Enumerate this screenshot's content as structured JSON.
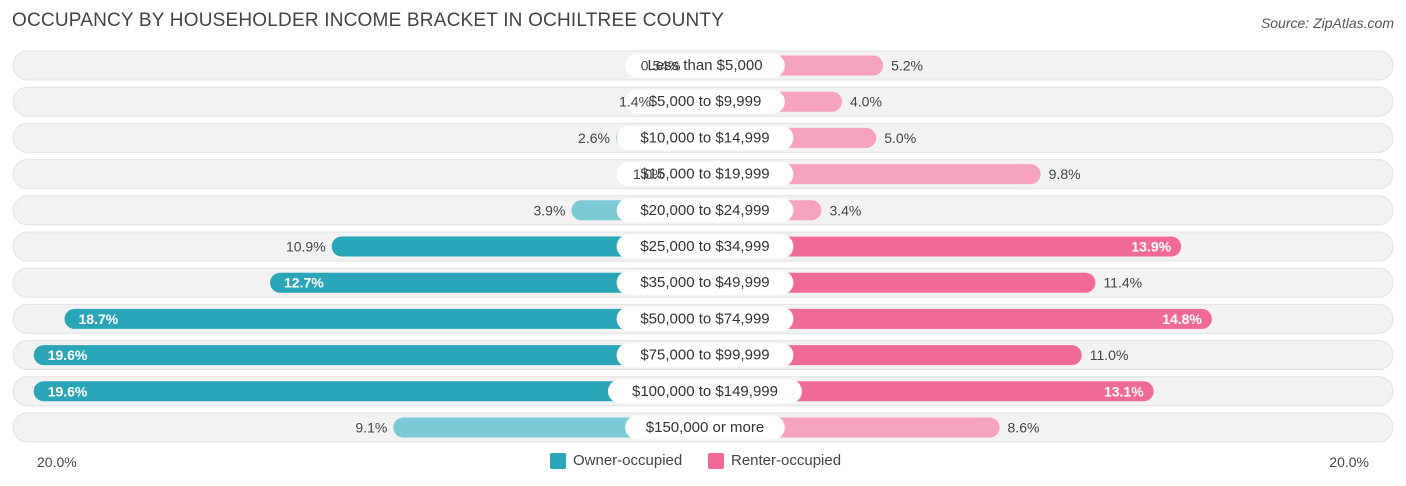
{
  "header": {
    "title": "OCCUPANCY BY HOUSEHOLDER INCOME BRACKET IN OCHILTREE COUNTY",
    "source": "Source: ZipAtlas.com"
  },
  "axis": {
    "left_label": "20.0%",
    "right_label": "20.0%"
  },
  "legend": {
    "owner_label": "Owner-occupied",
    "renter_label": "Renter-occupied"
  },
  "colors": {
    "owner_dark": "#2ba5b8",
    "owner_light": "#7ccad6",
    "renter_dark": "#f06a96",
    "renter_light": "#f5a3be",
    "row_bg": "#f1f1f1"
  },
  "chart_data": {
    "type": "bar",
    "orientation": "diverging-horizontal",
    "title": "OCCUPANCY BY HOUSEHOLDER INCOME BRACKET IN OCHILTREE COUNTY",
    "xlim": [
      -20,
      20
    ],
    "categories": [
      "Less than $5,000",
      "$5,000 to $9,999",
      "$10,000 to $14,999",
      "$15,000 to $19,999",
      "$20,000 to $24,999",
      "$25,000 to $34,999",
      "$35,000 to $49,999",
      "$50,000 to $74,999",
      "$75,000 to $99,999",
      "$100,000 to $149,999",
      "$150,000 or more"
    ],
    "series": [
      {
        "name": "Owner-occupied",
        "values": [
          0.54,
          1.4,
          2.6,
          1.0,
          3.9,
          10.9,
          12.7,
          18.7,
          19.6,
          19.6,
          9.1
        ],
        "labels": [
          "0.54%",
          "1.4%",
          "2.6%",
          "1.0%",
          "3.9%",
          "10.9%",
          "12.7%",
          "18.7%",
          "19.6%",
          "19.6%",
          "9.1%"
        ]
      },
      {
        "name": "Renter-occupied",
        "values": [
          5.2,
          4.0,
          5.0,
          9.8,
          3.4,
          13.9,
          11.4,
          14.8,
          11.0,
          13.1,
          8.6
        ],
        "labels": [
          "5.2%",
          "4.0%",
          "5.0%",
          "9.8%",
          "3.4%",
          "13.9%",
          "11.4%",
          "14.8%",
          "11.0%",
          "13.1%",
          "8.6%"
        ]
      }
    ],
    "legend_position": "bottom-center"
  }
}
